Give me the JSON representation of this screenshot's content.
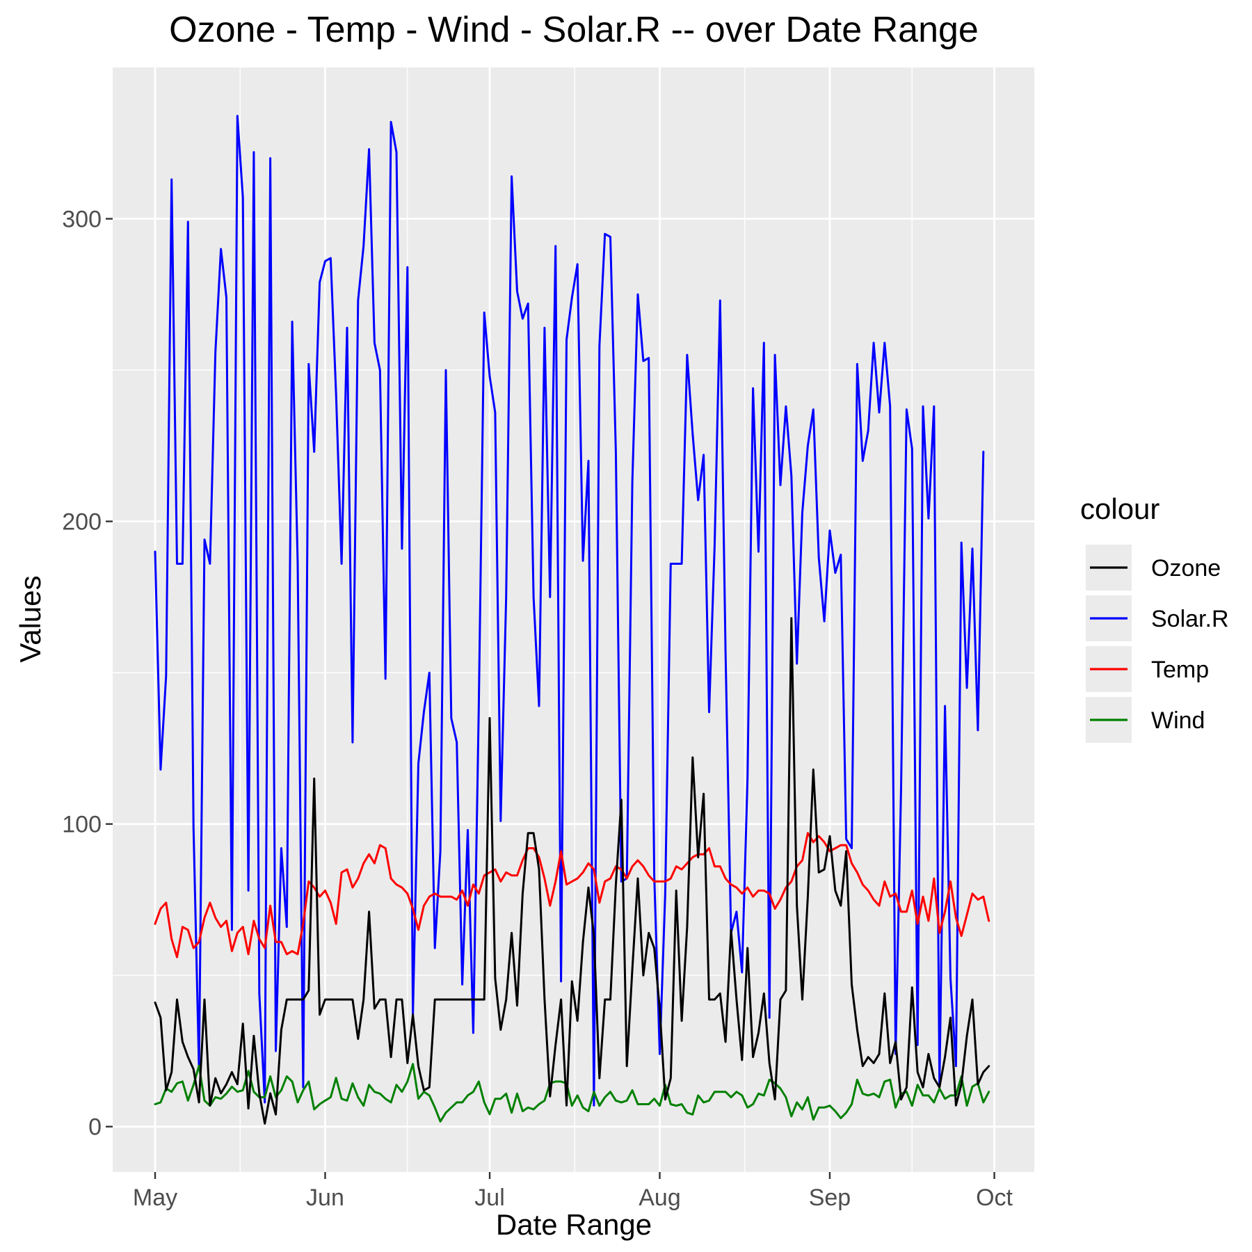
{
  "chart_data": {
    "type": "line",
    "title": "Ozone - Temp - Wind - Solar.R -- over Date Range",
    "xlabel": "Date Range",
    "ylabel": "Values",
    "x_start": "May 1",
    "x_end": "Sep 30",
    "x_ticks": [
      "May",
      "Jun",
      "Jul",
      "Aug",
      "Sep",
      "Oct"
    ],
    "y_ticks": [
      0,
      100,
      200,
      300
    ],
    "ylim": [
      -15,
      350
    ],
    "grid": true,
    "legend_title": "colour",
    "legend_position": "right",
    "series": [
      {
        "name": "Ozone",
        "color": "#000000",
        "values": [
          41,
          36,
          12,
          18,
          42,
          28,
          23,
          19,
          8,
          42,
          7,
          16,
          11,
          14,
          18,
          14,
          34,
          6,
          30,
          11,
          1,
          11,
          4,
          32,
          42,
          42,
          42,
          42,
          45,
          115,
          37,
          42,
          42,
          42,
          42,
          42,
          42,
          29,
          42,
          71,
          39,
          42,
          42,
          23,
          42,
          42,
          21,
          37,
          20,
          12,
          13,
          42,
          42,
          42,
          42,
          42,
          42,
          42,
          42,
          42,
          42,
          135,
          49,
          32,
          42,
          64,
          40,
          77,
          97,
          97,
          85,
          42,
          10,
          27,
          42,
          7,
          48,
          35,
          61,
          79,
          63,
          16,
          42,
          42,
          80,
          108,
          20,
          52,
          82,
          50,
          64,
          59,
          39,
          9,
          16,
          78,
          35,
          66,
          122,
          89,
          110,
          42,
          42,
          44,
          28,
          65,
          42,
          22,
          59,
          23,
          31,
          44,
          21,
          9,
          42,
          45,
          168,
          73,
          42,
          76,
          118,
          84,
          85,
          96,
          78,
          73,
          91,
          47,
          32,
          20,
          23,
          21,
          24,
          44,
          21,
          28,
          9,
          13,
          46,
          18,
          13,
          24,
          16,
          13,
          23,
          36,
          7,
          14,
          30,
          42,
          14,
          18,
          20
        ]
      },
      {
        "name": "Solar.R",
        "color": "#0000ff",
        "values": [
          190,
          118,
          149,
          313,
          186,
          186,
          299,
          99,
          19,
          194,
          186,
          256,
          290,
          274,
          65,
          334,
          307,
          78,
          322,
          44,
          8,
          320,
          25,
          92,
          66,
          266,
          186,
          13,
          252,
          223,
          279,
          286,
          287,
          242,
          186,
          264,
          127,
          273,
          291,
          323,
          259,
          250,
          148,
          332,
          322,
          191,
          284,
          37,
          120,
          137,
          150,
          59,
          91,
          250,
          135,
          127,
          47,
          98,
          31,
          138,
          269,
          248,
          236,
          101,
          175,
          314,
          276,
          267,
          272,
          175,
          139,
          264,
          175,
          291,
          48,
          260,
          274,
          285,
          187,
          220,
          7,
          258,
          295,
          294,
          223,
          81,
          82,
          213,
          275,
          253,
          254,
          83,
          24,
          77,
          186,
          186,
          186,
          255,
          229,
          207,
          222,
          137,
          192,
          273,
          157,
          64,
          71,
          51,
          115,
          244,
          190,
          259,
          36,
          255,
          212,
          238,
          215,
          153,
          203,
          225,
          237,
          188,
          167,
          197,
          183,
          189,
          95,
          92,
          252,
          220,
          230,
          259,
          236,
          259,
          238,
          24,
          112,
          237,
          224,
          27,
          238,
          201,
          238,
          14,
          139,
          49,
          20,
          193,
          145,
          191,
          131,
          223
        ]
      },
      {
        "name": "Temp",
        "color": "#ff0000",
        "values": [
          67,
          72,
          74,
          62,
          56,
          66,
          65,
          59,
          61,
          69,
          74,
          69,
          66,
          68,
          58,
          64,
          66,
          57,
          68,
          62,
          59,
          73,
          61,
          61,
          57,
          58,
          57,
          67,
          81,
          79,
          76,
          78,
          74,
          67,
          84,
          85,
          79,
          82,
          87,
          90,
          87,
          93,
          92,
          82,
          80,
          79,
          77,
          72,
          65,
          73,
          76,
          77,
          76,
          76,
          76,
          75,
          78,
          73,
          80,
          77,
          83,
          84,
          85,
          81,
          84,
          83,
          83,
          88,
          92,
          92,
          89,
          82,
          73,
          81,
          91,
          80,
          81,
          82,
          84,
          87,
          85,
          74,
          81,
          82,
          86,
          85,
          82,
          86,
          88,
          86,
          83,
          81,
          81,
          81,
          82,
          86,
          85,
          87,
          89,
          90,
          90,
          92,
          86,
          86,
          82,
          80,
          79,
          77,
          79,
          76,
          78,
          78,
          77,
          72,
          75,
          79,
          81,
          86,
          88,
          97,
          94,
          96,
          94,
          91,
          92,
          93,
          93,
          87,
          84,
          80,
          78,
          75,
          73,
          81,
          76,
          77,
          71,
          71,
          78,
          67,
          76,
          68,
          82,
          64,
          71,
          81,
          69,
          63,
          70,
          77,
          75,
          76,
          68
        ]
      },
      {
        "name": "Wind",
        "color": "#008000",
        "values": [
          7.4,
          8.0,
          12.6,
          11.5,
          14.3,
          14.9,
          8.6,
          13.8,
          20.1,
          8.6,
          6.9,
          9.7,
          9.2,
          10.9,
          13.2,
          11.5,
          12.0,
          18.4,
          11.5,
          9.7,
          9.7,
          16.6,
          9.7,
          12.0,
          16.6,
          14.9,
          8.0,
          12.0,
          14.9,
          5.7,
          7.4,
          8.6,
          9.7,
          16.1,
          9.2,
          8.6,
          14.3,
          9.7,
          6.9,
          13.8,
          11.5,
          10.9,
          9.2,
          8.0,
          13.8,
          11.5,
          14.9,
          20.7,
          9.2,
          11.5,
          10.3,
          6.3,
          1.7,
          4.6,
          6.3,
          8.0,
          8.0,
          10.3,
          11.5,
          14.9,
          8.0,
          4.1,
          9.2,
          9.2,
          10.9,
          4.6,
          10.9,
          5.1,
          6.3,
          5.7,
          7.4,
          8.6,
          14.3,
          14.9,
          14.9,
          14.3,
          6.9,
          10.3,
          6.3,
          5.1,
          11.5,
          6.9,
          9.7,
          11.5,
          8.6,
          8.0,
          8.6,
          12.0,
          7.4,
          7.4,
          7.4,
          9.2,
          6.9,
          13.8,
          7.4,
          6.9,
          7.4,
          4.6,
          4.0,
          10.3,
          8.0,
          8.6,
          11.5,
          11.5,
          11.5,
          9.7,
          11.5,
          10.3,
          6.3,
          7.4,
          10.9,
          10.3,
          15.5,
          14.3,
          12.6,
          9.7,
          3.4,
          8.0,
          5.7,
          9.7,
          2.3,
          6.3,
          6.3,
          6.9,
          5.1,
          2.8,
          4.6,
          7.4,
          15.5,
          10.9,
          10.3,
          10.9,
          9.7,
          14.9,
          15.5,
          6.3,
          10.9,
          11.5,
          6.9,
          13.8,
          10.3,
          10.3,
          8.0,
          12.6,
          9.2,
          10.3,
          10.3,
          16.6,
          6.9,
          13.2,
          14.3,
          8.0,
          11.5
        ]
      }
    ]
  }
}
